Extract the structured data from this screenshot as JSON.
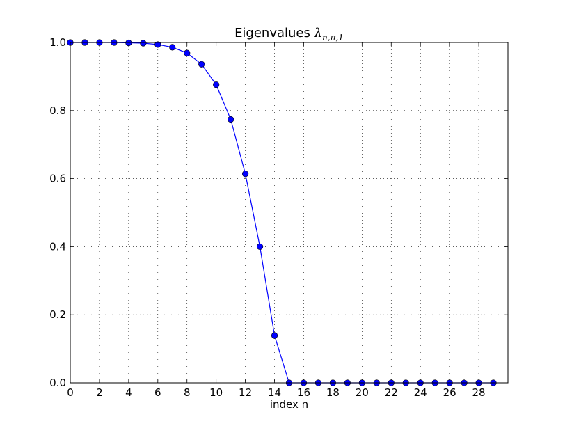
{
  "chart_data": {
    "type": "line",
    "title": {
      "text": "Eigenvalues ",
      "symbol": "λ",
      "subscript": "n,π,1"
    },
    "xlabel": "index n",
    "ylabel": "",
    "xlim": [
      0,
      30
    ],
    "ylim": [
      0,
      1.0
    ],
    "xticks": [
      0,
      2,
      4,
      6,
      8,
      10,
      12,
      14,
      16,
      18,
      20,
      22,
      24,
      26,
      28
    ],
    "xtick_labels": [
      "0",
      "2",
      "4",
      "6",
      "8",
      "10",
      "12",
      "14",
      "16",
      "18",
      "20",
      "22",
      "24",
      "26",
      "28"
    ],
    "yticks": [
      0.0,
      0.2,
      0.4,
      0.6,
      0.8,
      1.0
    ],
    "ytick_labels": [
      "0.0",
      "0.2",
      "0.4",
      "0.6",
      "0.8",
      "1.0"
    ],
    "grid": true,
    "legend": "none",
    "color": "#0000ff",
    "x": [
      0,
      1,
      2,
      3,
      4,
      5,
      6,
      7,
      8,
      9,
      10,
      11,
      12,
      13,
      14,
      15,
      16,
      17,
      18,
      19,
      20,
      21,
      22,
      23,
      24,
      25,
      26,
      27,
      28,
      29
    ],
    "values": [
      1.0,
      1.0,
      1.0,
      1.0,
      0.999,
      0.998,
      0.994,
      0.986,
      0.969,
      0.936,
      0.876,
      0.774,
      0.614,
      0.4,
      0.139,
      0.0,
      0.0,
      0.0,
      0.0,
      0.0,
      0.0,
      0.0,
      0.0,
      0.0,
      0.0,
      0.0,
      0.0,
      0.0,
      0.0,
      0.0
    ]
  }
}
